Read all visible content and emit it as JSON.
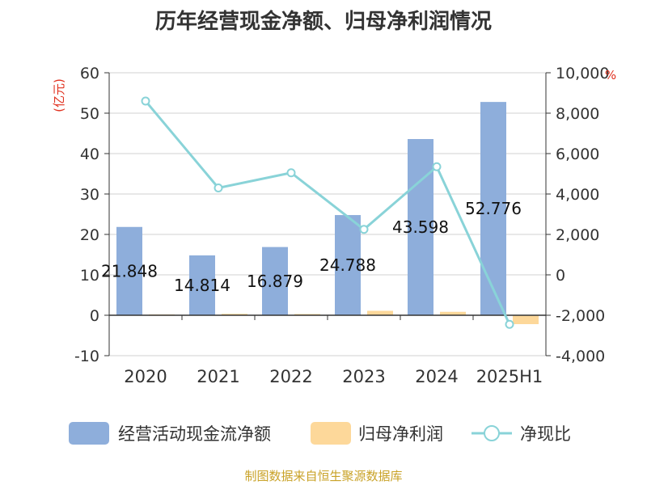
{
  "title": "历年经营现金净额、归母净利润情况",
  "footer": "制图数据来自恒生聚源数据库",
  "left_unit": "(亿元)",
  "right_unit": "%",
  "colors": {
    "bar1": "#8eaedb",
    "bar2": "#fdd89a",
    "line": "#89d3d8",
    "unit": "#e0301e"
  },
  "chart_data": {
    "type": "bar",
    "categories": [
      "2020",
      "2021",
      "2022",
      "2023",
      "2024",
      "2025H1"
    ],
    "series": [
      {
        "name": "经营活动现金流净额",
        "axis": "left",
        "type": "bar",
        "values": [
          21.848,
          14.814,
          16.879,
          24.788,
          43.598,
          52.776
        ],
        "labels": [
          "21.848",
          "14.814",
          "16.879",
          "24.788",
          "43.598",
          "52.776"
        ]
      },
      {
        "name": "归母净利润",
        "axis": "left",
        "type": "bar",
        "values": [
          0.2,
          0.35,
          0.3,
          1.1,
          0.85,
          -2.2
        ]
      },
      {
        "name": "净现比",
        "axis": "right",
        "type": "line",
        "values": [
          8600,
          4300,
          5050,
          2250,
          5350,
          -2450
        ]
      }
    ],
    "left_axis": {
      "min": -10,
      "max": 60,
      "ticks": [
        "-10",
        "0",
        "10",
        "20",
        "30",
        "40",
        "50",
        "60"
      ]
    },
    "right_axis": {
      "min": -4000,
      "max": 10000,
      "ticks": [
        "-4,000",
        "-2,000",
        "0",
        "2,000",
        "4,000",
        "6,000",
        "8,000",
        "10,000"
      ]
    },
    "grid": true,
    "legend": "bottom"
  }
}
